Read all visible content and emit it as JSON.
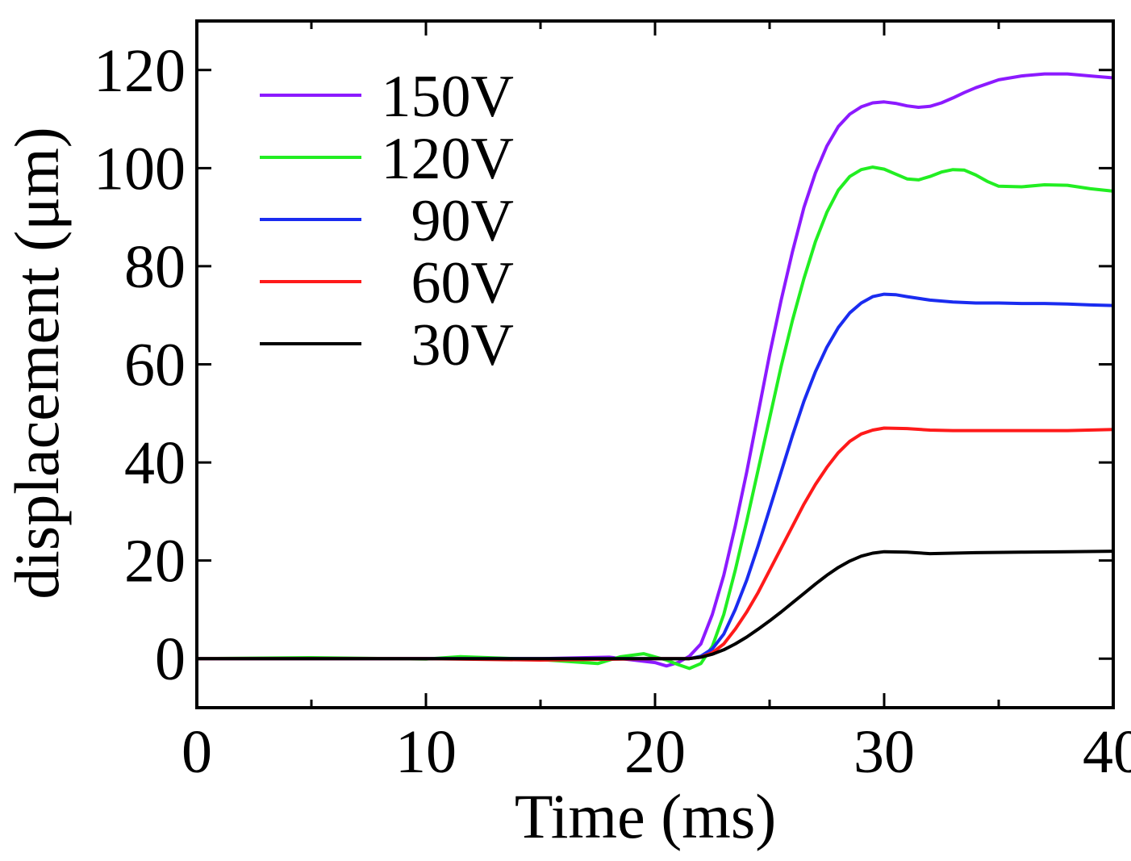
{
  "chart_data": {
    "type": "line",
    "title": "",
    "xlabel": "Time (ms)",
    "ylabel": "displacement (μm)",
    "xlim": [
      0,
      40
    ],
    "ylim": [
      -10,
      130
    ],
    "xticks": [
      0,
      10,
      20,
      30,
      40
    ],
    "yticks": [
      0,
      20,
      40,
      60,
      80,
      100,
      120
    ],
    "x_minor_step": 5,
    "grid": false,
    "legend_position": "top-left",
    "series": [
      {
        "name": "150V",
        "color": "#8c1aff",
        "points": [
          [
            0,
            0
          ],
          [
            5,
            0
          ],
          [
            10,
            0
          ],
          [
            15,
            0
          ],
          [
            18,
            0.3
          ],
          [
            20,
            -0.8
          ],
          [
            20.5,
            -1.5
          ],
          [
            21,
            -0.8
          ],
          [
            21.5,
            0.5
          ],
          [
            22,
            3
          ],
          [
            22.5,
            9
          ],
          [
            23,
            17
          ],
          [
            23.5,
            27
          ],
          [
            24,
            38
          ],
          [
            24.5,
            50
          ],
          [
            25,
            62
          ],
          [
            25.5,
            73
          ],
          [
            26,
            83
          ],
          [
            26.5,
            92
          ],
          [
            27,
            99
          ],
          [
            27.5,
            104.5
          ],
          [
            28,
            108.5
          ],
          [
            28.5,
            111
          ],
          [
            29,
            112.5
          ],
          [
            29.5,
            113.3
          ],
          [
            30,
            113.5
          ],
          [
            30.5,
            113.2
          ],
          [
            31,
            112.7
          ],
          [
            31.5,
            112.4
          ],
          [
            32,
            112.6
          ],
          [
            32.5,
            113.3
          ],
          [
            33,
            114.3
          ],
          [
            33.5,
            115.4
          ],
          [
            34,
            116.4
          ],
          [
            35,
            118
          ],
          [
            36,
            118.8
          ],
          [
            37,
            119.2
          ],
          [
            38,
            119.2
          ],
          [
            39,
            118.8
          ],
          [
            40,
            118.4
          ]
        ]
      },
      {
        "name": "120V",
        "color": "#22ee22",
        "points": [
          [
            0,
            0
          ],
          [
            5,
            0.2
          ],
          [
            10,
            -0.1
          ],
          [
            11.5,
            0.4
          ],
          [
            15,
            -0.2
          ],
          [
            17.5,
            -1
          ],
          [
            18.5,
            0.4
          ],
          [
            19.5,
            1
          ],
          [
            20.5,
            -0.3
          ],
          [
            21,
            -1.2
          ],
          [
            21.5,
            -2
          ],
          [
            22,
            -1
          ],
          [
            22.5,
            2.5
          ],
          [
            23,
            9
          ],
          [
            23.5,
            18
          ],
          [
            24,
            28
          ],
          [
            24.5,
            38.5
          ],
          [
            25,
            49
          ],
          [
            25.5,
            59.5
          ],
          [
            26,
            69
          ],
          [
            26.5,
            77.5
          ],
          [
            27,
            85
          ],
          [
            27.5,
            91
          ],
          [
            28,
            95.5
          ],
          [
            28.5,
            98.3
          ],
          [
            29,
            99.7
          ],
          [
            29.5,
            100.2
          ],
          [
            30,
            99.8
          ],
          [
            30.5,
            98.8
          ],
          [
            31,
            97.8
          ],
          [
            31.5,
            97.6
          ],
          [
            32,
            98.3
          ],
          [
            32.5,
            99.2
          ],
          [
            33,
            99.7
          ],
          [
            33.5,
            99.6
          ],
          [
            34,
            98.6
          ],
          [
            34.5,
            97.3
          ],
          [
            35,
            96.3
          ],
          [
            36,
            96.2
          ],
          [
            37,
            96.6
          ],
          [
            38,
            96.5
          ],
          [
            39,
            95.8
          ],
          [
            40,
            95.3
          ]
        ]
      },
      {
        "name": "90V",
        "color": "#1a2cf0",
        "points": [
          [
            0,
            0
          ],
          [
            10,
            0
          ],
          [
            15,
            0
          ],
          [
            20,
            0
          ],
          [
            21.5,
            0
          ],
          [
            22,
            0.5
          ],
          [
            22.5,
            2
          ],
          [
            23,
            5
          ],
          [
            23.5,
            10
          ],
          [
            24,
            16
          ],
          [
            24.5,
            23
          ],
          [
            25,
            30.5
          ],
          [
            25.5,
            38
          ],
          [
            26,
            45.5
          ],
          [
            26.5,
            52.5
          ],
          [
            27,
            58.5
          ],
          [
            27.5,
            63.5
          ],
          [
            28,
            67.5
          ],
          [
            28.5,
            70.5
          ],
          [
            29,
            72.5
          ],
          [
            29.5,
            73.8
          ],
          [
            30,
            74.3
          ],
          [
            30.5,
            74.2
          ],
          [
            31,
            73.8
          ],
          [
            32,
            73.1
          ],
          [
            33,
            72.7
          ],
          [
            34,
            72.5
          ],
          [
            35,
            72.5
          ],
          [
            36,
            72.4
          ],
          [
            37,
            72.4
          ],
          [
            38,
            72.3
          ],
          [
            39,
            72.1
          ],
          [
            40,
            72
          ]
        ]
      },
      {
        "name": "60V",
        "color": "#ff1a1a",
        "points": [
          [
            0,
            0
          ],
          [
            10,
            0
          ],
          [
            15,
            -0.3
          ],
          [
            20,
            0
          ],
          [
            21.5,
            0
          ],
          [
            22,
            0.3
          ],
          [
            22.5,
            1.2
          ],
          [
            23,
            3
          ],
          [
            23.5,
            6
          ],
          [
            24,
            9.5
          ],
          [
            24.5,
            13.5
          ],
          [
            25,
            18
          ],
          [
            25.5,
            22.5
          ],
          [
            26,
            27
          ],
          [
            26.5,
            31.5
          ],
          [
            27,
            35.5
          ],
          [
            27.5,
            39
          ],
          [
            28,
            42
          ],
          [
            28.5,
            44.3
          ],
          [
            29,
            45.8
          ],
          [
            29.5,
            46.6
          ],
          [
            30,
            47
          ],
          [
            31,
            46.9
          ],
          [
            32,
            46.6
          ],
          [
            33,
            46.5
          ],
          [
            34,
            46.5
          ],
          [
            36,
            46.5
          ],
          [
            38,
            46.5
          ],
          [
            40,
            46.7
          ]
        ]
      },
      {
        "name": "30V",
        "color": "#000000",
        "points": [
          [
            0,
            0
          ],
          [
            10,
            0
          ],
          [
            15,
            0
          ],
          [
            20,
            0
          ],
          [
            21.5,
            0
          ],
          [
            22,
            0.3
          ],
          [
            22.5,
            0.9
          ],
          [
            23,
            1.8
          ],
          [
            23.5,
            3
          ],
          [
            24,
            4.4
          ],
          [
            24.5,
            6
          ],
          [
            25,
            7.7
          ],
          [
            25.5,
            9.5
          ],
          [
            26,
            11.4
          ],
          [
            26.5,
            13.3
          ],
          [
            27,
            15.2
          ],
          [
            27.5,
            17
          ],
          [
            28,
            18.6
          ],
          [
            28.5,
            19.9
          ],
          [
            29,
            20.9
          ],
          [
            29.5,
            21.5
          ],
          [
            30,
            21.8
          ],
          [
            31,
            21.7
          ],
          [
            32,
            21.4
          ],
          [
            33,
            21.5
          ],
          [
            34,
            21.6
          ],
          [
            36,
            21.7
          ],
          [
            38,
            21.8
          ],
          [
            40,
            21.9
          ]
        ]
      }
    ]
  }
}
